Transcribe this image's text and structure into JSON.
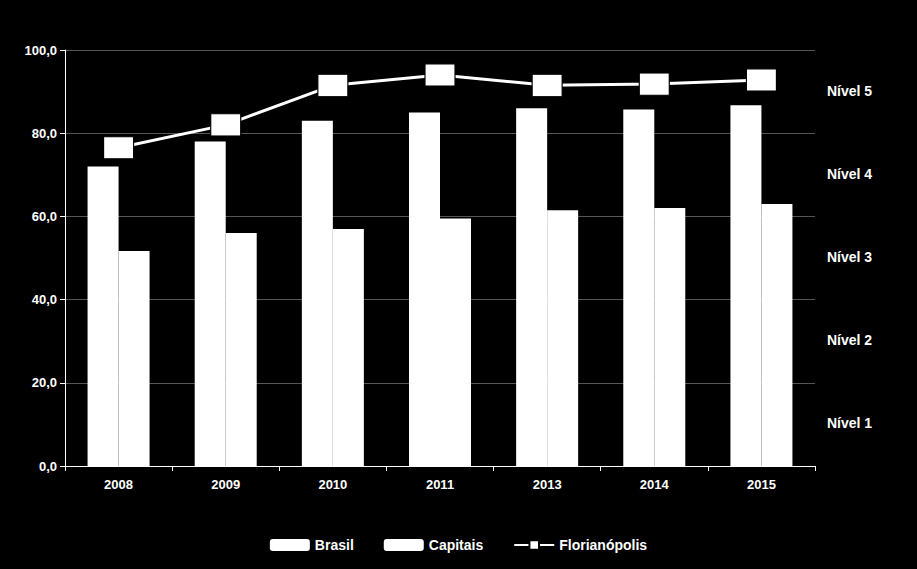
{
  "chart_data": {
    "type": "bar",
    "categories": [
      "2008",
      "2009",
      "2010",
      "2011",
      "2013",
      "2014",
      "2015"
    ],
    "series": [
      {
        "name": "Brasil",
        "type": "bar",
        "color": "#ffffff",
        "values": [
          72.0,
          78.0,
          83.0,
          85.0,
          86.0,
          85.7,
          86.7
        ]
      },
      {
        "name": "Capitais",
        "type": "bar",
        "color": "#ffffff",
        "values": [
          51.7,
          56.0,
          57.0,
          59.5,
          61.5,
          62.0,
          63.0
        ]
      },
      {
        "name": "Florianópolis",
        "type": "line",
        "color": "#ffffff",
        "marker": "square",
        "values": [
          76.5,
          82.0,
          91.5,
          94.0,
          91.5,
          91.8,
          92.8
        ]
      }
    ],
    "ylim": [
      0,
      100
    ],
    "yticks": [
      {
        "value": 0,
        "label": "0,0"
      },
      {
        "value": 20,
        "label": "20,0"
      },
      {
        "value": 40,
        "label": "40,0"
      },
      {
        "value": 60,
        "label": "60,0"
      },
      {
        "value": 80,
        "label": "80,0"
      },
      {
        "value": 100,
        "label": "100,0"
      }
    ],
    "grid": true,
    "legend": "bottom",
    "annotations": [
      {
        "text": "Nível 5",
        "y": 90
      },
      {
        "text": "Nível 4",
        "y": 70
      },
      {
        "text": "Nível 3",
        "y": 50
      },
      {
        "text": "Nível 2",
        "y": 30
      },
      {
        "text": "Nível 1",
        "y": 10
      }
    ]
  }
}
